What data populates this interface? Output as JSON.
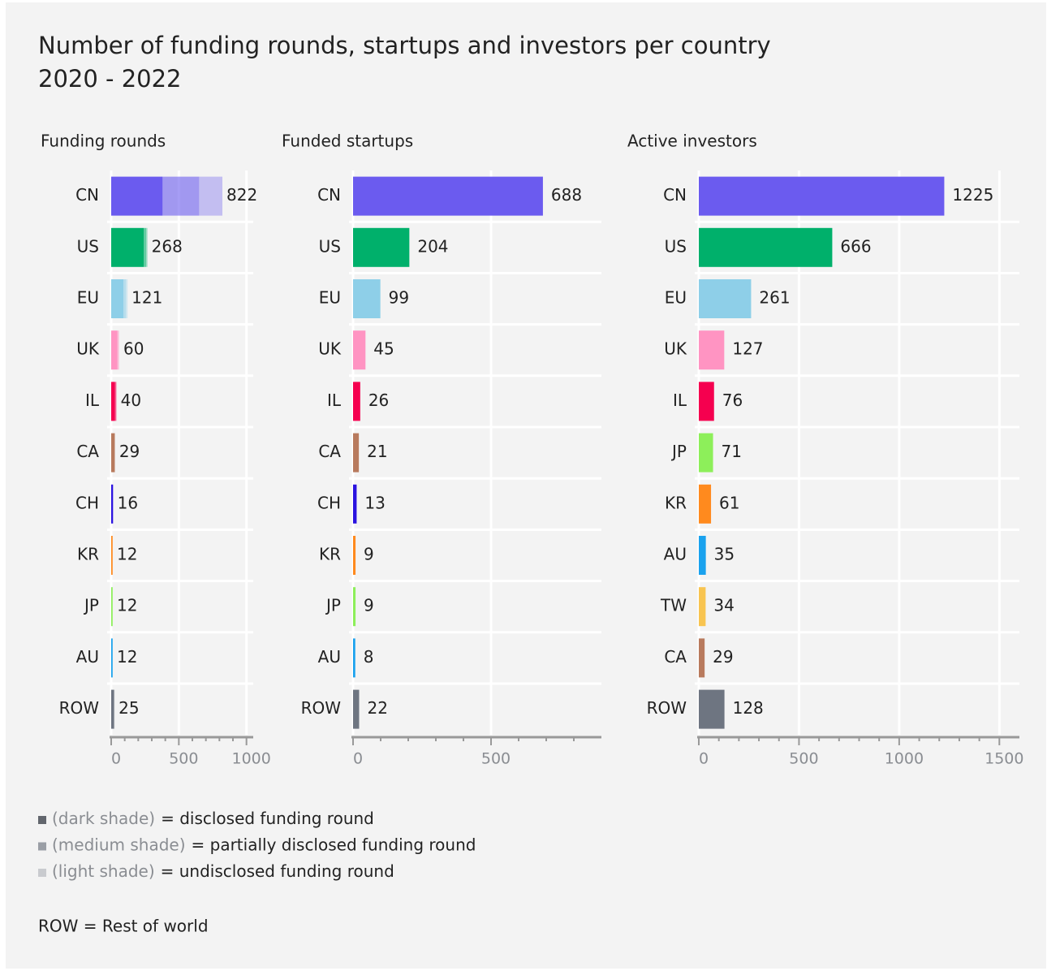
{
  "title": "Number of funding rounds, startups and investors per country",
  "subtitle": "2020 - 2022",
  "chart_data": [
    {
      "type": "stacked-hbar",
      "title": "Funding rounds",
      "categories": [
        "CN",
        "US",
        "EU",
        "UK",
        "IL",
        "CA",
        "CH",
        "KR",
        "JP",
        "AU",
        "ROW"
      ],
      "colors": [
        "#6b5bef",
        "#00b06b",
        "#8ecfe8",
        "#ff94c2",
        "#f5004f",
        "#b87a5d",
        "#2b13e0",
        "#ff8a1e",
        "#8def5a",
        "#1aa2ee",
        "#6e7581"
      ],
      "series": [
        {
          "name": "(dark shade)",
          "label": "= disclosed funding round",
          "color": "#62666d",
          "opacity": 1,
          "values": [
            380,
            240,
            90,
            45,
            28,
            25,
            12,
            10,
            10,
            10,
            20
          ]
        },
        {
          "name": "(medium shade)",
          "label": "= partially disclosed funding round",
          "color": "#9a9ea5",
          "opacity": 0.6,
          "values": [
            270,
            18,
            18,
            8,
            8,
            3,
            2,
            1,
            1,
            1,
            3
          ]
        },
        {
          "name": "(light shade)",
          "label": "= undisclosed funding round",
          "color": "#c9cbcf",
          "opacity": 0.35,
          "values": [
            172,
            10,
            13,
            7,
            4,
            1,
            2,
            1,
            1,
            1,
            2
          ]
        }
      ],
      "totals": [
        822,
        268,
        121,
        60,
        40,
        29,
        16,
        12,
        12,
        12,
        25
      ],
      "xlim": [
        0,
        1050
      ],
      "xticks": [
        0,
        500,
        1000
      ],
      "minor_xticks": [
        100,
        200,
        300,
        400,
        600,
        700,
        800,
        900
      ],
      "grid": true
    },
    {
      "type": "hbar",
      "title": "Funded startups",
      "categories": [
        "CN",
        "US",
        "EU",
        "UK",
        "IL",
        "CA",
        "CH",
        "KR",
        "JP",
        "AU",
        "ROW"
      ],
      "colors": [
        "#6b5bef",
        "#00b06b",
        "#8ecfe8",
        "#ff94c2",
        "#f5004f",
        "#b87a5d",
        "#2b13e0",
        "#ff8a1e",
        "#8def5a",
        "#1aa2ee",
        "#6e7581"
      ],
      "values": [
        688,
        204,
        99,
        45,
        26,
        21,
        13,
        9,
        9,
        8,
        22
      ],
      "xlim": [
        0,
        900
      ],
      "xticks": [
        0,
        500
      ],
      "minor_xticks": [
        100,
        200,
        300,
        400,
        600,
        700,
        800
      ],
      "grid": true
    },
    {
      "type": "hbar",
      "title": "Active investors",
      "categories": [
        "CN",
        "US",
        "EU",
        "UK",
        "IL",
        "JP",
        "KR",
        "AU",
        "TW",
        "CA",
        "ROW"
      ],
      "colors": [
        "#6b5bef",
        "#00b06b",
        "#8ecfe8",
        "#ff94c2",
        "#f5004f",
        "#8def5a",
        "#ff8a1e",
        "#1aa2ee",
        "#f8c450",
        "#b87a5d",
        "#6e7581"
      ],
      "values": [
        1225,
        666,
        261,
        127,
        76,
        71,
        61,
        35,
        34,
        29,
        128
      ],
      "xlim": [
        0,
        1600
      ],
      "xticks": [
        0,
        500,
        1000,
        1500
      ],
      "minor_xticks": [
        100,
        200,
        300,
        400,
        600,
        700,
        800,
        900,
        1100,
        1200,
        1300,
        1400
      ],
      "grid": true
    }
  ],
  "notes": [
    "ROW = Rest of world"
  ]
}
